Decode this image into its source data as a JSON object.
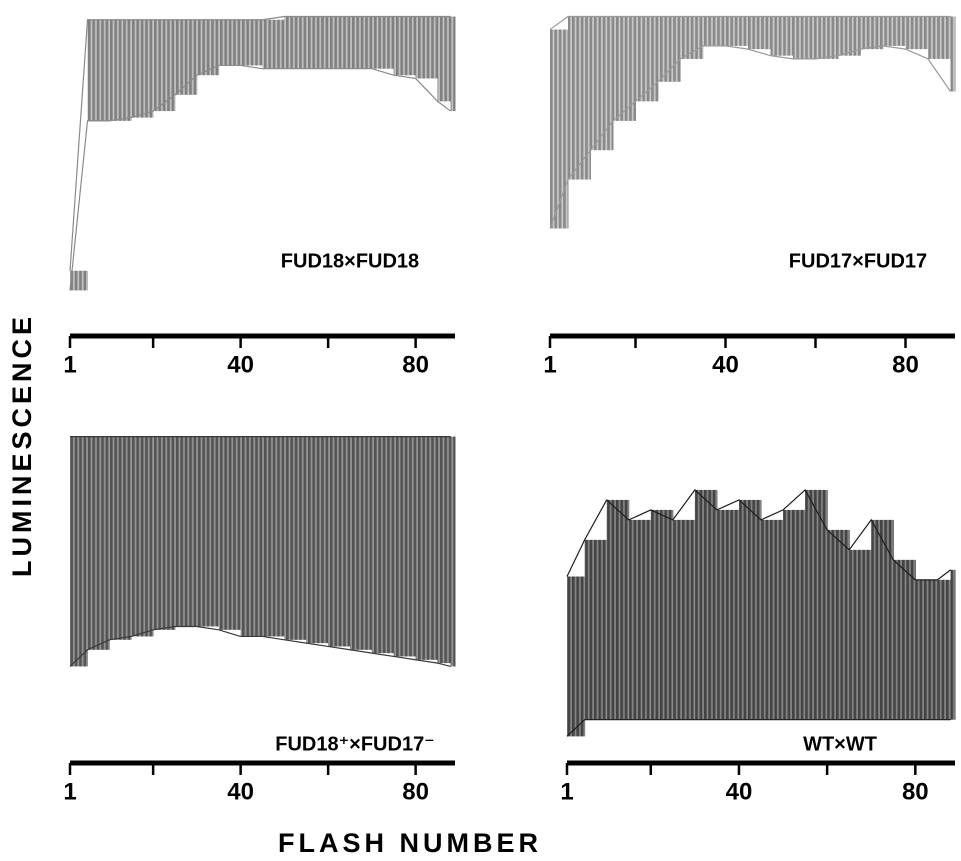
{
  "ylabel": "LUMINESCENCE",
  "xlabel": "FLASH NUMBER",
  "chart_data": [
    {
      "type": "range",
      "label": "FUD18×FUD18",
      "color": "#8a8a8a",
      "x": [
        1,
        5,
        10,
        15,
        20,
        25,
        30,
        35,
        40,
        45,
        50,
        55,
        60,
        65,
        70,
        75,
        80,
        85,
        88
      ],
      "series": [
        {
          "name": "low",
          "values": [
            14,
            66,
            66,
            67,
            69,
            74,
            80,
            83,
            83,
            82,
            82,
            82,
            82,
            82,
            82,
            80,
            79,
            72,
            69
          ]
        },
        {
          "name": "high",
          "values": [
            20,
            97,
            97,
            97,
            97,
            97,
            97,
            97,
            97,
            97,
            98,
            98,
            98,
            98,
            98,
            98,
            98,
            98,
            98
          ]
        }
      ],
      "xlim": [
        1,
        89
      ],
      "ylim": [
        0,
        100
      ],
      "xticks": [
        1,
        40,
        80
      ],
      "xminor": [
        20,
        60
      ]
    },
    {
      "type": "range",
      "label": "FUD17×FUD17",
      "color": "#9a9a9a",
      "x": [
        1,
        5,
        10,
        15,
        20,
        25,
        30,
        35,
        40,
        45,
        50,
        55,
        60,
        65,
        70,
        75,
        80,
        85,
        90
      ],
      "series": [
        {
          "name": "low",
          "values": [
            33,
            48,
            57,
            66,
            72,
            78,
            85,
            89,
            89,
            88,
            86,
            85,
            85,
            86,
            88,
            89,
            88,
            85,
            75
          ]
        },
        {
          "name": "high",
          "values": [
            94,
            98,
            98,
            98,
            98,
            98,
            98,
            98,
            98,
            98,
            98,
            98,
            98,
            98,
            98,
            98,
            98,
            98,
            98
          ]
        }
      ],
      "xlim": [
        1,
        91
      ],
      "ylim": [
        0,
        100
      ],
      "xticks": [
        1,
        40,
        80
      ],
      "xminor": [
        20,
        60
      ]
    },
    {
      "type": "range",
      "label": "FUD18⁺×FUD17⁻",
      "color": "#3a3a3a",
      "x": [
        1,
        5,
        10,
        15,
        20,
        25,
        30,
        35,
        40,
        45,
        50,
        55,
        60,
        65,
        70,
        75,
        80,
        85,
        88
      ],
      "series": [
        {
          "name": "low",
          "values": [
            29,
            34,
            37,
            38,
            40,
            41,
            41,
            40,
            38,
            38,
            37,
            36,
            35,
            34,
            33,
            32,
            31,
            30,
            29
          ]
        },
        {
          "name": "high",
          "values": [
            98,
            98,
            98,
            98,
            98,
            98,
            98,
            98,
            98,
            98,
            98,
            98,
            98,
            98,
            98,
            98,
            98,
            98,
            98
          ]
        }
      ],
      "xlim": [
        1,
        89
      ],
      "ylim": [
        0,
        100
      ],
      "xticks": [
        1,
        40,
        80
      ],
      "xminor": [
        20,
        60
      ]
    },
    {
      "type": "range",
      "label": "WT×WT",
      "color": "#1e1e1e",
      "x": [
        1,
        5,
        10,
        15,
        20,
        25,
        30,
        35,
        40,
        45,
        50,
        55,
        60,
        65,
        70,
        75,
        80,
        85,
        88
      ],
      "series": [
        {
          "name": "low",
          "values": [
            8,
            13,
            13,
            13,
            13,
            13,
            13,
            13,
            13,
            13,
            13,
            13,
            13,
            13,
            13,
            13,
            13,
            13,
            13
          ]
        },
        {
          "name": "high",
          "values": [
            56,
            67,
            79,
            73,
            76,
            73,
            82,
            76,
            79,
            73,
            76,
            82,
            70,
            64,
            73,
            61,
            55,
            55,
            58
          ]
        }
      ],
      "xlim": [
        1,
        89
      ],
      "ylim": [
        0,
        100
      ],
      "xticks": [
        1,
        40,
        80
      ],
      "xminor": [
        20,
        60
      ]
    }
  ]
}
